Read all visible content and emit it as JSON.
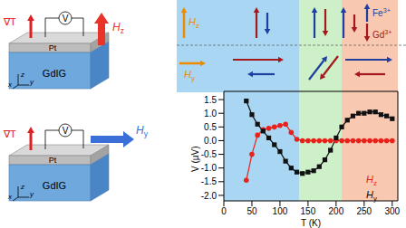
{
  "chart_data": {
    "type": "line",
    "x_label": "T (K)",
    "y_label": "V (μV)",
    "xlim": [
      0,
      310
    ],
    "ylim": [
      -2.2,
      1.8
    ],
    "xticks": [
      0,
      50,
      100,
      150,
      200,
      250,
      300
    ],
    "yticks": [
      {
        "value": -2,
        "label": "-2.0"
      },
      -1.5,
      {
        "value": -1,
        "label": "-1.0"
      },
      -0.5,
      {
        "value": 0,
        "label": "0.0"
      },
      0.5,
      {
        "value": 1,
        "label": "1.0"
      },
      1.5
    ],
    "legend": "lower right",
    "regions": [
      {
        "from": 0,
        "to": 135,
        "color": "#a9d6f3"
      },
      {
        "from": 135,
        "to": 210,
        "color": "#cdf0c9"
      },
      {
        "from": 210,
        "to": 310,
        "color": "#f9c8b1"
      }
    ],
    "series": [
      {
        "name": "Hz",
        "color": "#e8221a",
        "marker": "circle",
        "x": [
          40,
          50,
          60,
          70,
          80,
          90,
          100,
          110,
          120,
          130,
          140,
          150,
          160,
          170,
          180,
          190,
          200,
          210,
          220,
          230,
          240,
          250,
          260,
          270,
          280,
          290,
          300
        ],
        "values": [
          -1.45,
          -0.5,
          0.2,
          0.4,
          0.45,
          0.5,
          0.55,
          0.6,
          0.3,
          0.05,
          0,
          0,
          0,
          0,
          0,
          0,
          0,
          0,
          0,
          0,
          0,
          0,
          0,
          0,
          0,
          0,
          0
        ]
      },
      {
        "name": "Hy",
        "color": "#111111",
        "marker": "square",
        "x": [
          40,
          50,
          60,
          70,
          80,
          90,
          100,
          110,
          120,
          130,
          140,
          150,
          160,
          170,
          180,
          190,
          200,
          210,
          220,
          230,
          240,
          250,
          260,
          270,
          280,
          290,
          300
        ],
        "values": [
          1.45,
          0.95,
          0.6,
          0.35,
          0.1,
          -0.15,
          -0.4,
          -0.75,
          -1.0,
          -1.15,
          -1.2,
          -1.15,
          -1.1,
          -0.95,
          -0.7,
          -0.35,
          0.1,
          0.5,
          0.75,
          0.9,
          1.0,
          1.0,
          1.05,
          1.05,
          0.95,
          0.9,
          0.8
        ]
      }
    ]
  },
  "schematic": {
    "panels": [
      {
        "gradient": "∇T",
        "meter": "V",
        "field": "Hz",
        "field_color": "#e8332a",
        "top_layer": "Pt",
        "bottom_layer": "GdIG",
        "axes": [
          "x",
          "y",
          "z"
        ]
      },
      {
        "gradient": "∇T",
        "meter": "V",
        "field": "Hy",
        "field_color": "#3a6fd8",
        "top_layer": "Pt",
        "bottom_layer": "GdIG",
        "axes": [
          "x",
          "y",
          "z"
        ]
      }
    ]
  },
  "spin_diagram": {
    "fields": [
      {
        "label": "Hz",
        "color": "#f08a00"
      },
      {
        "label": "Hy",
        "color": "#f08a00"
      }
    ],
    "ions": [
      {
        "label": "Fe3+",
        "color": "#1f3f9f"
      },
      {
        "label": "Gd3+",
        "color": "#a3191c"
      }
    ]
  }
}
